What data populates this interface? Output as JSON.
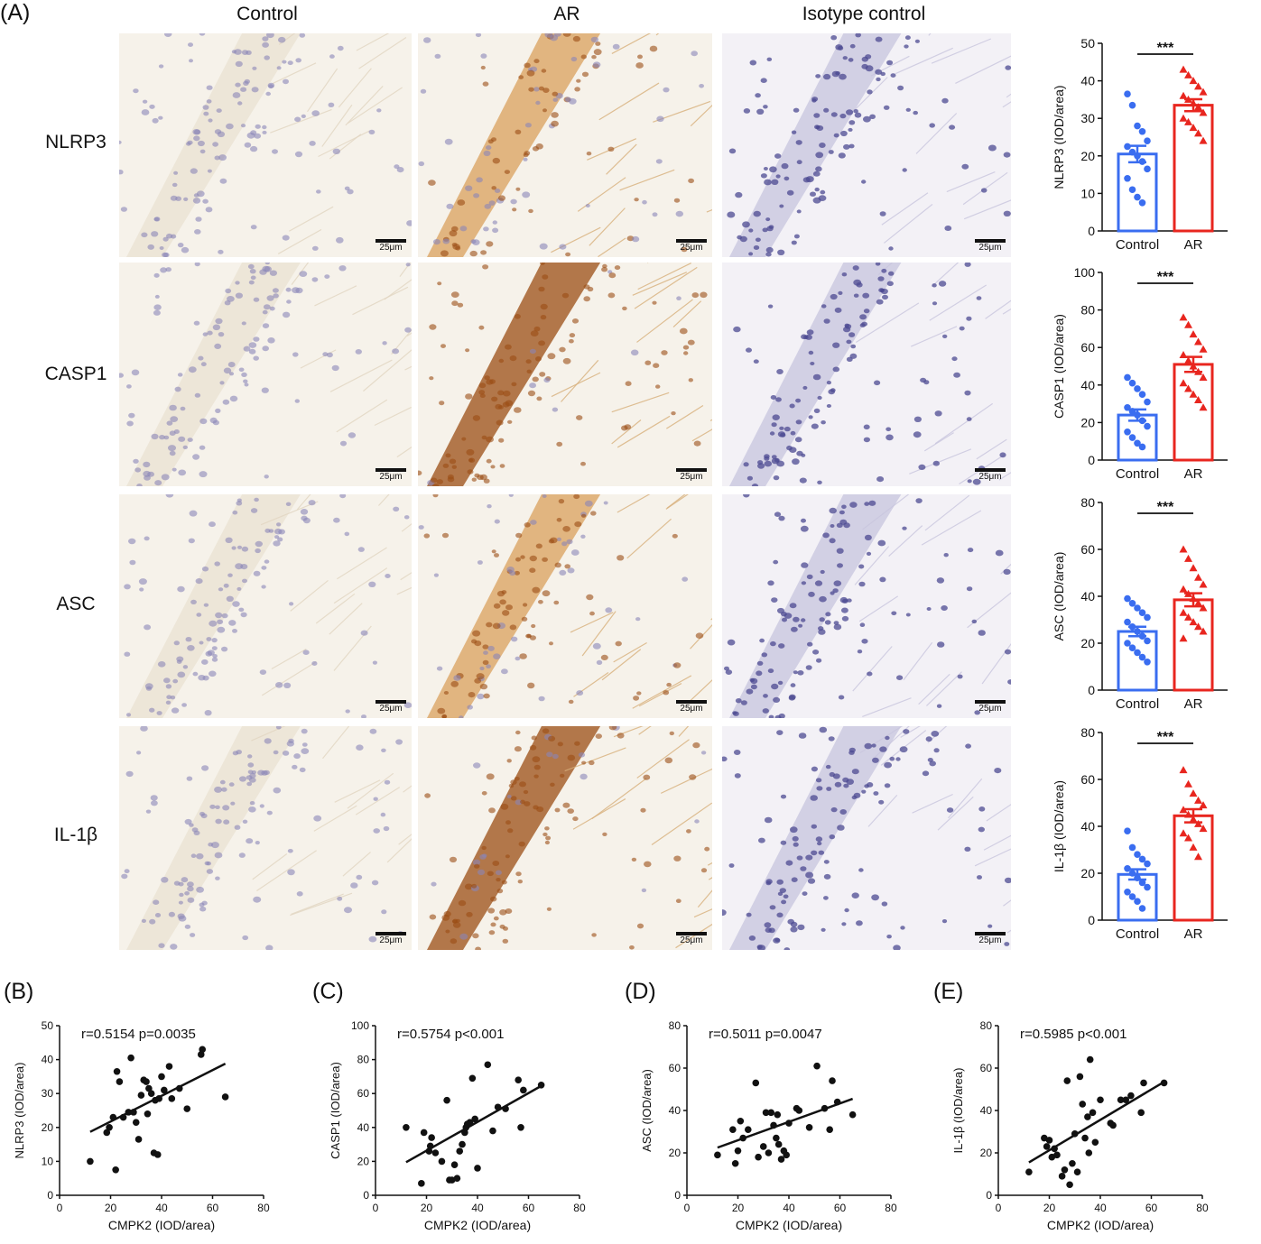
{
  "panels": {
    "A": "(A)",
    "B": "(B)",
    "C": "(C)",
    "D": "(D)",
    "E": "(E)"
  },
  "columns": [
    "Control",
    "AR",
    "Isotype control"
  ],
  "rows": [
    "NLRP3",
    "CASP1",
    "ASC",
    "IL-1β"
  ],
  "scale_bar": "25μm",
  "colors": {
    "control": "#3a6df0",
    "ar": "#e8261f",
    "tissue_bg": "#f6f2ea",
    "hema": "#8a86b8",
    "dab_light": "#d9a05c",
    "dab_dark": "#9b4d14"
  },
  "chart_data": [
    {
      "id": "bar-nlrp3",
      "type": "bar",
      "categories": [
        "Control",
        "AR"
      ],
      "ylabel": "NLRP3 (IOD/area)",
      "ylim": [
        0,
        50
      ],
      "yticks": [
        0,
        10,
        20,
        30,
        40,
        50
      ],
      "means": [
        20.5,
        33.5
      ],
      "sem": [
        2.2,
        1.6
      ],
      "significance": "***",
      "points": {
        "Control": [
          36.5,
          33.5,
          28,
          26.5,
          24,
          22.5,
          21,
          20,
          18.5,
          16.5,
          14,
          11,
          9,
          7.5
        ],
        "AR": [
          43,
          41.5,
          40,
          38.5,
          37,
          36,
          35,
          34,
          33,
          31.5,
          30,
          29,
          27.5,
          26,
          24
        ]
      }
    },
    {
      "id": "bar-casp1",
      "type": "bar",
      "categories": [
        "Control",
        "AR"
      ],
      "ylabel": "CASP1 (IOD/area)",
      "ylim": [
        0,
        100
      ],
      "yticks": [
        0,
        20,
        40,
        60,
        80,
        100
      ],
      "means": [
        24,
        51
      ],
      "sem": [
        3,
        4
      ],
      "significance": "***",
      "points": {
        "Control": [
          44,
          41,
          38,
          35,
          31,
          28,
          26,
          24,
          21,
          18,
          15,
          12,
          9,
          7
        ],
        "AR": [
          76,
          72,
          67,
          63,
          59,
          56,
          53,
          50,
          47,
          44,
          41,
          38,
          35,
          32,
          28
        ]
      }
    },
    {
      "id": "bar-asc",
      "type": "bar",
      "categories": [
        "Control",
        "AR"
      ],
      "ylabel": "ASC (IOD/area)",
      "ylim": [
        0,
        80
      ],
      "yticks": [
        0,
        20,
        40,
        60,
        80
      ],
      "means": [
        25,
        38.5
      ],
      "sem": [
        2,
        2.8
      ],
      "significance": "***",
      "points": {
        "Control": [
          39,
          37,
          35,
          33,
          31,
          29,
          27,
          25,
          23,
          21,
          20,
          18,
          16,
          14,
          12
        ],
        "AR": [
          60,
          56,
          52,
          48,
          45,
          43,
          41,
          39,
          37,
          35,
          33,
          31,
          29,
          27,
          25,
          22
        ]
      }
    },
    {
      "id": "bar-il1b",
      "type": "bar",
      "categories": [
        "Control",
        "AR"
      ],
      "ylabel": "IL-1β (IOD/area)",
      "ylim": [
        0,
        80
      ],
      "yticks": [
        0,
        20,
        40,
        60,
        80
      ],
      "means": [
        19.5,
        44.5
      ],
      "sem": [
        2.2,
        2.8
      ],
      "significance": "***",
      "points": {
        "Control": [
          38,
          31,
          28,
          26,
          24,
          22,
          20,
          18,
          16,
          14,
          12,
          10,
          8,
          5
        ],
        "AR": [
          64,
          58,
          54,
          51,
          49,
          47,
          45,
          43,
          41,
          39,
          37,
          35,
          31,
          27
        ]
      }
    },
    {
      "id": "scatter-nlrp3",
      "type": "scatter",
      "annotation": "r=0.5154 p=0.0035",
      "xlabel": "CMPK2 (IOD/area)",
      "ylabel": "NLRP3 (IOD/area)",
      "xlim": [
        0,
        80
      ],
      "ylim": [
        0,
        50
      ],
      "xticks": [
        0,
        20,
        40,
        60,
        80
      ],
      "yticks": [
        0,
        10,
        20,
        30,
        40,
        50
      ],
      "fit": {
        "x": [
          12,
          65
        ],
        "y": [
          18.7,
          38.8
        ]
      },
      "points": [
        [
          12,
          10
        ],
        [
          18.5,
          18.5
        ],
        [
          19.5,
          20
        ],
        [
          21,
          23
        ],
        [
          22,
          7.5
        ],
        [
          22.5,
          36.5
        ],
        [
          23.5,
          33.5
        ],
        [
          25,
          23
        ],
        [
          27,
          24.5
        ],
        [
          28,
          40.5
        ],
        [
          29,
          24.5
        ],
        [
          30,
          21.5
        ],
        [
          31,
          16.5
        ],
        [
          32,
          29.5
        ],
        [
          33,
          34
        ],
        [
          34,
          33.5
        ],
        [
          34.5,
          24
        ],
        [
          35,
          31.5
        ],
        [
          36,
          30
        ],
        [
          37,
          12.5
        ],
        [
          37.5,
          28
        ],
        [
          38.5,
          12
        ],
        [
          39,
          28.5
        ],
        [
          40,
          35
        ],
        [
          41,
          31
        ],
        [
          43,
          38
        ],
        [
          44,
          28.5
        ],
        [
          47,
          31.5
        ],
        [
          50,
          25.5
        ],
        [
          55.5,
          41.5
        ],
        [
          56,
          43
        ],
        [
          65,
          29
        ]
      ]
    },
    {
      "id": "scatter-casp1",
      "type": "scatter",
      "annotation": "r=0.5754 p<0.001",
      "xlabel": "CMPK2 (IOD/area)",
      "ylabel": "CASP1 (IOD/area)",
      "xlim": [
        0,
        80
      ],
      "ylim": [
        0,
        100
      ],
      "xticks": [
        0,
        20,
        40,
        60,
        80
      ],
      "yticks": [
        0,
        20,
        40,
        60,
        80,
        100
      ],
      "fit": {
        "x": [
          12,
          65
        ],
        "y": [
          19.5,
          64.5
        ]
      },
      "points": [
        [
          12,
          40
        ],
        [
          18,
          7
        ],
        [
          19,
          37
        ],
        [
          21,
          26
        ],
        [
          21.5,
          29
        ],
        [
          22,
          34
        ],
        [
          23.5,
          25
        ],
        [
          26,
          20
        ],
        [
          28,
          56
        ],
        [
          29,
          9
        ],
        [
          30,
          9
        ],
        [
          31,
          18
        ],
        [
          32,
          10
        ],
        [
          33,
          26
        ],
        [
          34,
          30
        ],
        [
          35,
          37
        ],
        [
          35.5,
          40
        ],
        [
          36,
          42
        ],
        [
          37,
          43
        ],
        [
          38,
          69
        ],
        [
          39,
          45
        ],
        [
          40,
          16
        ],
        [
          44,
          77
        ],
        [
          46,
          38
        ],
        [
          48,
          52
        ],
        [
          51,
          51
        ],
        [
          56,
          68
        ],
        [
          57,
          40
        ],
        [
          58,
          62
        ],
        [
          65,
          65
        ]
      ]
    },
    {
      "id": "scatter-asc",
      "type": "scatter",
      "annotation": "r=0.5011 p=0.0047",
      "xlabel": "CMPK2 (IOD/area)",
      "ylabel": "ASC (IOD/area)",
      "xlim": [
        0,
        80
      ],
      "ylim": [
        0,
        80
      ],
      "xticks": [
        0,
        20,
        40,
        60,
        80
      ],
      "yticks": [
        0,
        20,
        40,
        60,
        80
      ],
      "fit": {
        "x": [
          12,
          65
        ],
        "y": [
          22.5,
          45.5
        ]
      },
      "points": [
        [
          12,
          19
        ],
        [
          18,
          31
        ],
        [
          19,
          15
        ],
        [
          20,
          21
        ],
        [
          21,
          35
        ],
        [
          22,
          27
        ],
        [
          24,
          31
        ],
        [
          27,
          53
        ],
        [
          28,
          18
        ],
        [
          30,
          23
        ],
        [
          31,
          39
        ],
        [
          32,
          20
        ],
        [
          33,
          39
        ],
        [
          34,
          33
        ],
        [
          35,
          27
        ],
        [
          35.5,
          38
        ],
        [
          36,
          24
        ],
        [
          37,
          17
        ],
        [
          38,
          21
        ],
        [
          39,
          19
        ],
        [
          40,
          34
        ],
        [
          43,
          41
        ],
        [
          44,
          40
        ],
        [
          48,
          32
        ],
        [
          51,
          61
        ],
        [
          54,
          41
        ],
        [
          56,
          31
        ],
        [
          57,
          54
        ],
        [
          59,
          44
        ],
        [
          65,
          38
        ]
      ]
    },
    {
      "id": "scatter-il1b",
      "type": "scatter",
      "annotation": "r=0.5985 p<0.001",
      "xlabel": "CMPK2 (IOD/area)",
      "ylabel": "IL-1β (IOD/area)",
      "xlim": [
        0,
        80
      ],
      "ylim": [
        0,
        80
      ],
      "xticks": [
        0,
        20,
        40,
        60,
        80
      ],
      "yticks": [
        0,
        20,
        40,
        60,
        80
      ],
      "fit": {
        "x": [
          12,
          65
        ],
        "y": [
          15.5,
          53.5
        ]
      },
      "points": [
        [
          12,
          11
        ],
        [
          18,
          27
        ],
        [
          19,
          23
        ],
        [
          20,
          26
        ],
        [
          21,
          18
        ],
        [
          22,
          22
        ],
        [
          23,
          19
        ],
        [
          25,
          9
        ],
        [
          26,
          12
        ],
        [
          27,
          54
        ],
        [
          28,
          5
        ],
        [
          29,
          15
        ],
        [
          30,
          29
        ],
        [
          31,
          11
        ],
        [
          32,
          56
        ],
        [
          33,
          43
        ],
        [
          34,
          27
        ],
        [
          35,
          37
        ],
        [
          35.5,
          20
        ],
        [
          36,
          64
        ],
        [
          37,
          39
        ],
        [
          38,
          25
        ],
        [
          40,
          45
        ],
        [
          44,
          34
        ],
        [
          45,
          33
        ],
        [
          48,
          45
        ],
        [
          50,
          45
        ],
        [
          52,
          47
        ],
        [
          56,
          39
        ],
        [
          57,
          53
        ],
        [
          65,
          53
        ]
      ]
    }
  ]
}
